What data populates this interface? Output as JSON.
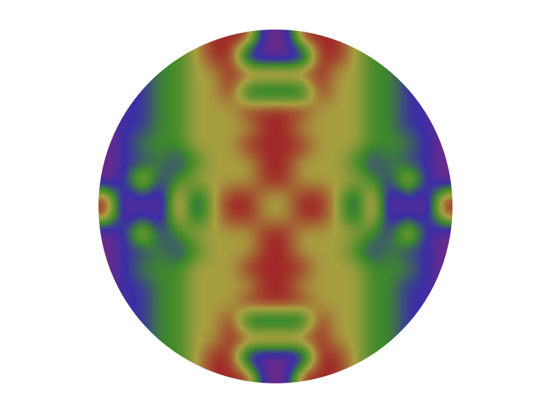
{
  "chart_data": {
    "type": "heatmap",
    "tick_labels": false,
    "cells": [
      [
        0,
        0,
        0,
        1,
        2,
        3,
        4,
        4,
        4,
        0,
        0,
        4,
        4,
        4,
        3,
        2,
        1,
        0,
        0,
        0
      ],
      [
        0,
        0,
        1,
        2,
        2,
        3,
        4,
        4,
        0,
        0,
        0,
        0,
        4,
        4,
        3,
        2,
        2,
        1,
        0,
        0
      ],
      [
        0,
        0,
        1,
        2,
        2,
        3,
        3,
        4,
        4,
        4,
        4,
        4,
        4,
        3,
        3,
        2,
        2,
        1,
        0,
        0
      ],
      [
        0,
        1,
        1,
        2,
        2,
        3,
        3,
        4,
        1,
        1,
        1,
        1,
        4,
        3,
        3,
        2,
        2,
        1,
        1,
        0
      ],
      [
        0,
        1,
        1,
        2,
        2,
        3,
        3,
        3,
        4,
        4,
        4,
        4,
        3,
        3,
        3,
        2,
        2,
        1,
        1,
        0
      ],
      [
        0,
        1,
        1,
        2,
        2,
        3,
        3,
        3,
        3,
        4,
        4,
        3,
        3,
        3,
        3,
        2,
        2,
        1,
        1,
        0
      ],
      [
        0,
        1,
        2,
        2,
        2,
        3,
        3,
        3,
        4,
        4,
        4,
        4,
        3,
        3,
        3,
        2,
        2,
        2,
        1,
        0
      ],
      [
        0,
        1,
        1,
        2,
        1,
        2,
        3,
        3,
        3,
        4,
        4,
        3,
        3,
        3,
        2,
        1,
        2,
        1,
        1,
        0
      ],
      [
        0,
        1,
        4,
        1,
        2,
        3,
        3,
        3,
        3,
        4,
        4,
        3,
        3,
        3,
        3,
        2,
        1,
        4,
        1,
        0
      ],
      [
        4,
        0,
        1,
        0,
        4,
        1,
        3,
        4,
        4,
        3,
        3,
        4,
        4,
        3,
        1,
        4,
        0,
        1,
        0,
        4
      ],
      [
        4,
        0,
        1,
        0,
        4,
        1,
        3,
        4,
        4,
        3,
        3,
        4,
        4,
        3,
        1,
        4,
        0,
        1,
        0,
        4
      ],
      [
        0,
        1,
        4,
        1,
        2,
        3,
        3,
        3,
        3,
        4,
        4,
        3,
        3,
        3,
        3,
        2,
        1,
        4,
        1,
        0
      ],
      [
        0,
        1,
        1,
        2,
        1,
        2,
        3,
        3,
        3,
        4,
        4,
        3,
        3,
        3,
        2,
        1,
        2,
        1,
        1,
        0
      ],
      [
        0,
        1,
        2,
        2,
        2,
        3,
        3,
        3,
        4,
        4,
        4,
        4,
        3,
        3,
        3,
        2,
        2,
        2,
        1,
        0
      ],
      [
        0,
        1,
        1,
        2,
        2,
        3,
        3,
        3,
        3,
        4,
        4,
        3,
        3,
        3,
        3,
        2,
        2,
        1,
        1,
        0
      ],
      [
        0,
        1,
        1,
        2,
        2,
        3,
        3,
        3,
        4,
        4,
        4,
        4,
        3,
        3,
        3,
        2,
        2,
        1,
        1,
        0
      ],
      [
        0,
        1,
        1,
        2,
        2,
        3,
        3,
        4,
        1,
        1,
        1,
        1,
        4,
        3,
        3,
        2,
        2,
        1,
        1,
        0
      ],
      [
        0,
        0,
        1,
        2,
        2,
        3,
        3,
        4,
        4,
        4,
        4,
        4,
        4,
        3,
        3,
        2,
        2,
        1,
        0,
        0
      ],
      [
        0,
        0,
        1,
        2,
        2,
        3,
        4,
        4,
        0,
        0,
        0,
        0,
        4,
        4,
        3,
        2,
        2,
        1,
        0,
        0
      ],
      [
        0,
        0,
        0,
        1,
        2,
        3,
        4,
        4,
        4,
        0,
        0,
        4,
        4,
        4,
        3,
        2,
        1,
        0,
        0,
        0
      ]
    ]
  }
}
